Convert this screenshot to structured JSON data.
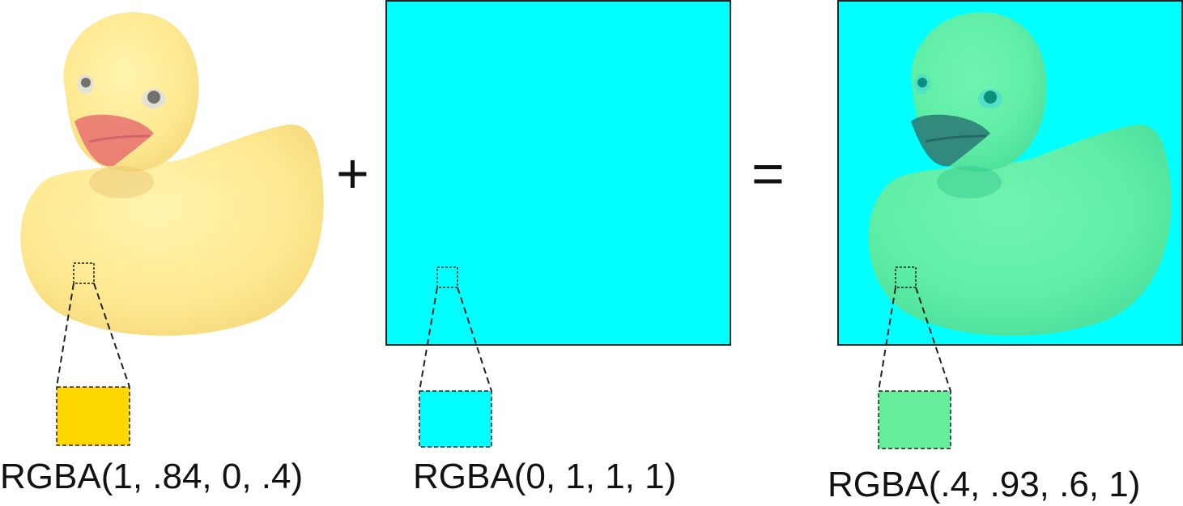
{
  "diagram": {
    "operator_plus": "+",
    "operator_equals": "=",
    "panels": [
      {
        "name": "source-duck",
        "content": "semi-transparent yellow rubber duck",
        "sample_color": "#FFD700",
        "sample_label": "RGBA(1, .84, 0, .4)"
      },
      {
        "name": "destination-cyan",
        "content": "solid cyan rectangle",
        "fill_color": "#00FFFF",
        "sample_color": "#00FFFF",
        "sample_label": "RGBA(0, 1, 1, 1)"
      },
      {
        "name": "result-blend",
        "content": "green duck blended over cyan",
        "fill_color": "#00FFFF",
        "duck_color": "#66ED99",
        "sample_color": "#66ED99",
        "sample_label": "RGBA(.4, .93, .6, 1)"
      }
    ]
  }
}
